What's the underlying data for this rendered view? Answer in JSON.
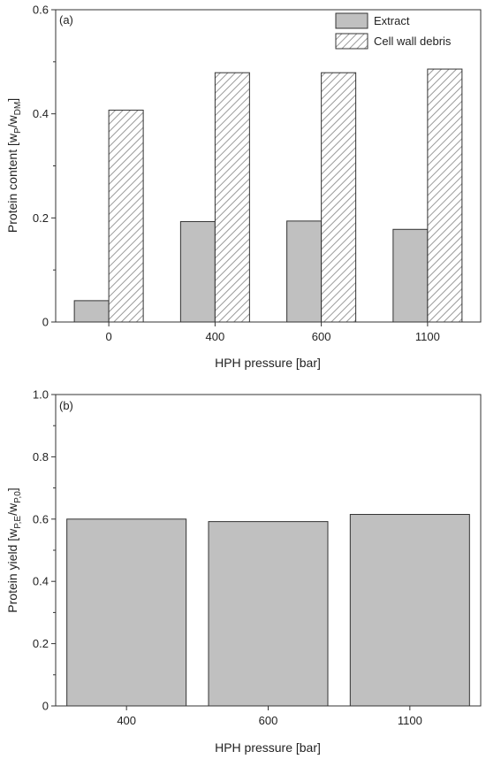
{
  "chart_data": [
    {
      "type": "bar",
      "panel_label": "(a)",
      "categories": [
        "0",
        "400",
        "600",
        "1100"
      ],
      "series": [
        {
          "name": "Extract",
          "values": [
            0.041,
            0.193,
            0.194,
            0.178
          ],
          "fill": "#c0c0c0",
          "pattern": "solid"
        },
        {
          "name": "Cell wall debris",
          "values": [
            0.407,
            0.479,
            0.479,
            0.486
          ],
          "fill": "#ffffff",
          "pattern": "diagonal-hatch"
        }
      ],
      "xlabel": "HPH pressure [bar]",
      "ylabel": {
        "main": "Protein content [w",
        "sub1": "P",
        "mid": "/w",
        "sub2": "DM",
        "end": "]"
      },
      "ylim": [
        0,
        0.6
      ],
      "yticks": [
        "0",
        "0.2",
        "0.4",
        "0.6"
      ],
      "grid": false,
      "legend_position": "top-right"
    },
    {
      "type": "bar",
      "panel_label": "(b)",
      "categories": [
        "400",
        "600",
        "1100"
      ],
      "series": [
        {
          "values": [
            0.6,
            0.592,
            0.615
          ],
          "fill": "#c0c0c0",
          "pattern": "solid"
        }
      ],
      "xlabel": "HPH pressure [bar]",
      "ylabel": {
        "main": "Protein yield [w",
        "sub1": "P,E",
        "mid": "/w",
        "sub2": "P,0",
        "end": "]"
      },
      "ylim": [
        0,
        1.0
      ],
      "yticks": [
        "0",
        "0.2",
        "0.4",
        "0.6",
        "0.8",
        "1.0"
      ],
      "grid": false
    }
  ]
}
